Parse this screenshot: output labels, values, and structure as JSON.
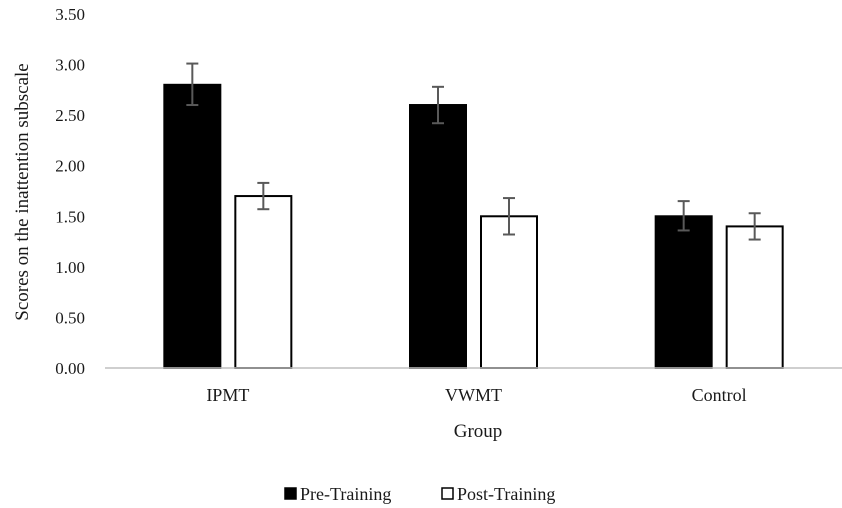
{
  "chart_data": {
    "type": "bar",
    "title": "",
    "xlabel": "Group",
    "ylabel": "Scores on the inattention subscale",
    "categories": [
      "IPMT",
      "VWMT",
      "Control"
    ],
    "ylim": [
      0,
      3.5
    ],
    "yticks": [
      "0.00",
      "0.50",
      "1.00",
      "1.50",
      "2.00",
      "2.50",
      "3.00",
      "3.50"
    ],
    "grid": false,
    "legend_position": "bottom",
    "series": [
      {
        "name": "Pre-Training",
        "values": [
          2.8,
          2.6,
          1.5
        ],
        "error_low": [
          2.6,
          2.42,
          1.36
        ],
        "error_high": [
          3.01,
          2.78,
          1.65
        ],
        "fill": "#000000"
      },
      {
        "name": "Post-Training",
        "values": [
          1.7,
          1.5,
          1.4
        ],
        "error_low": [
          1.57,
          1.32,
          1.27
        ],
        "error_high": [
          1.83,
          1.68,
          1.53
        ],
        "fill": "#ffffff"
      }
    ],
    "colors": {
      "axis": "#bfbfbf",
      "bar_stroke": "#000000",
      "error_bar": "#595959"
    }
  }
}
